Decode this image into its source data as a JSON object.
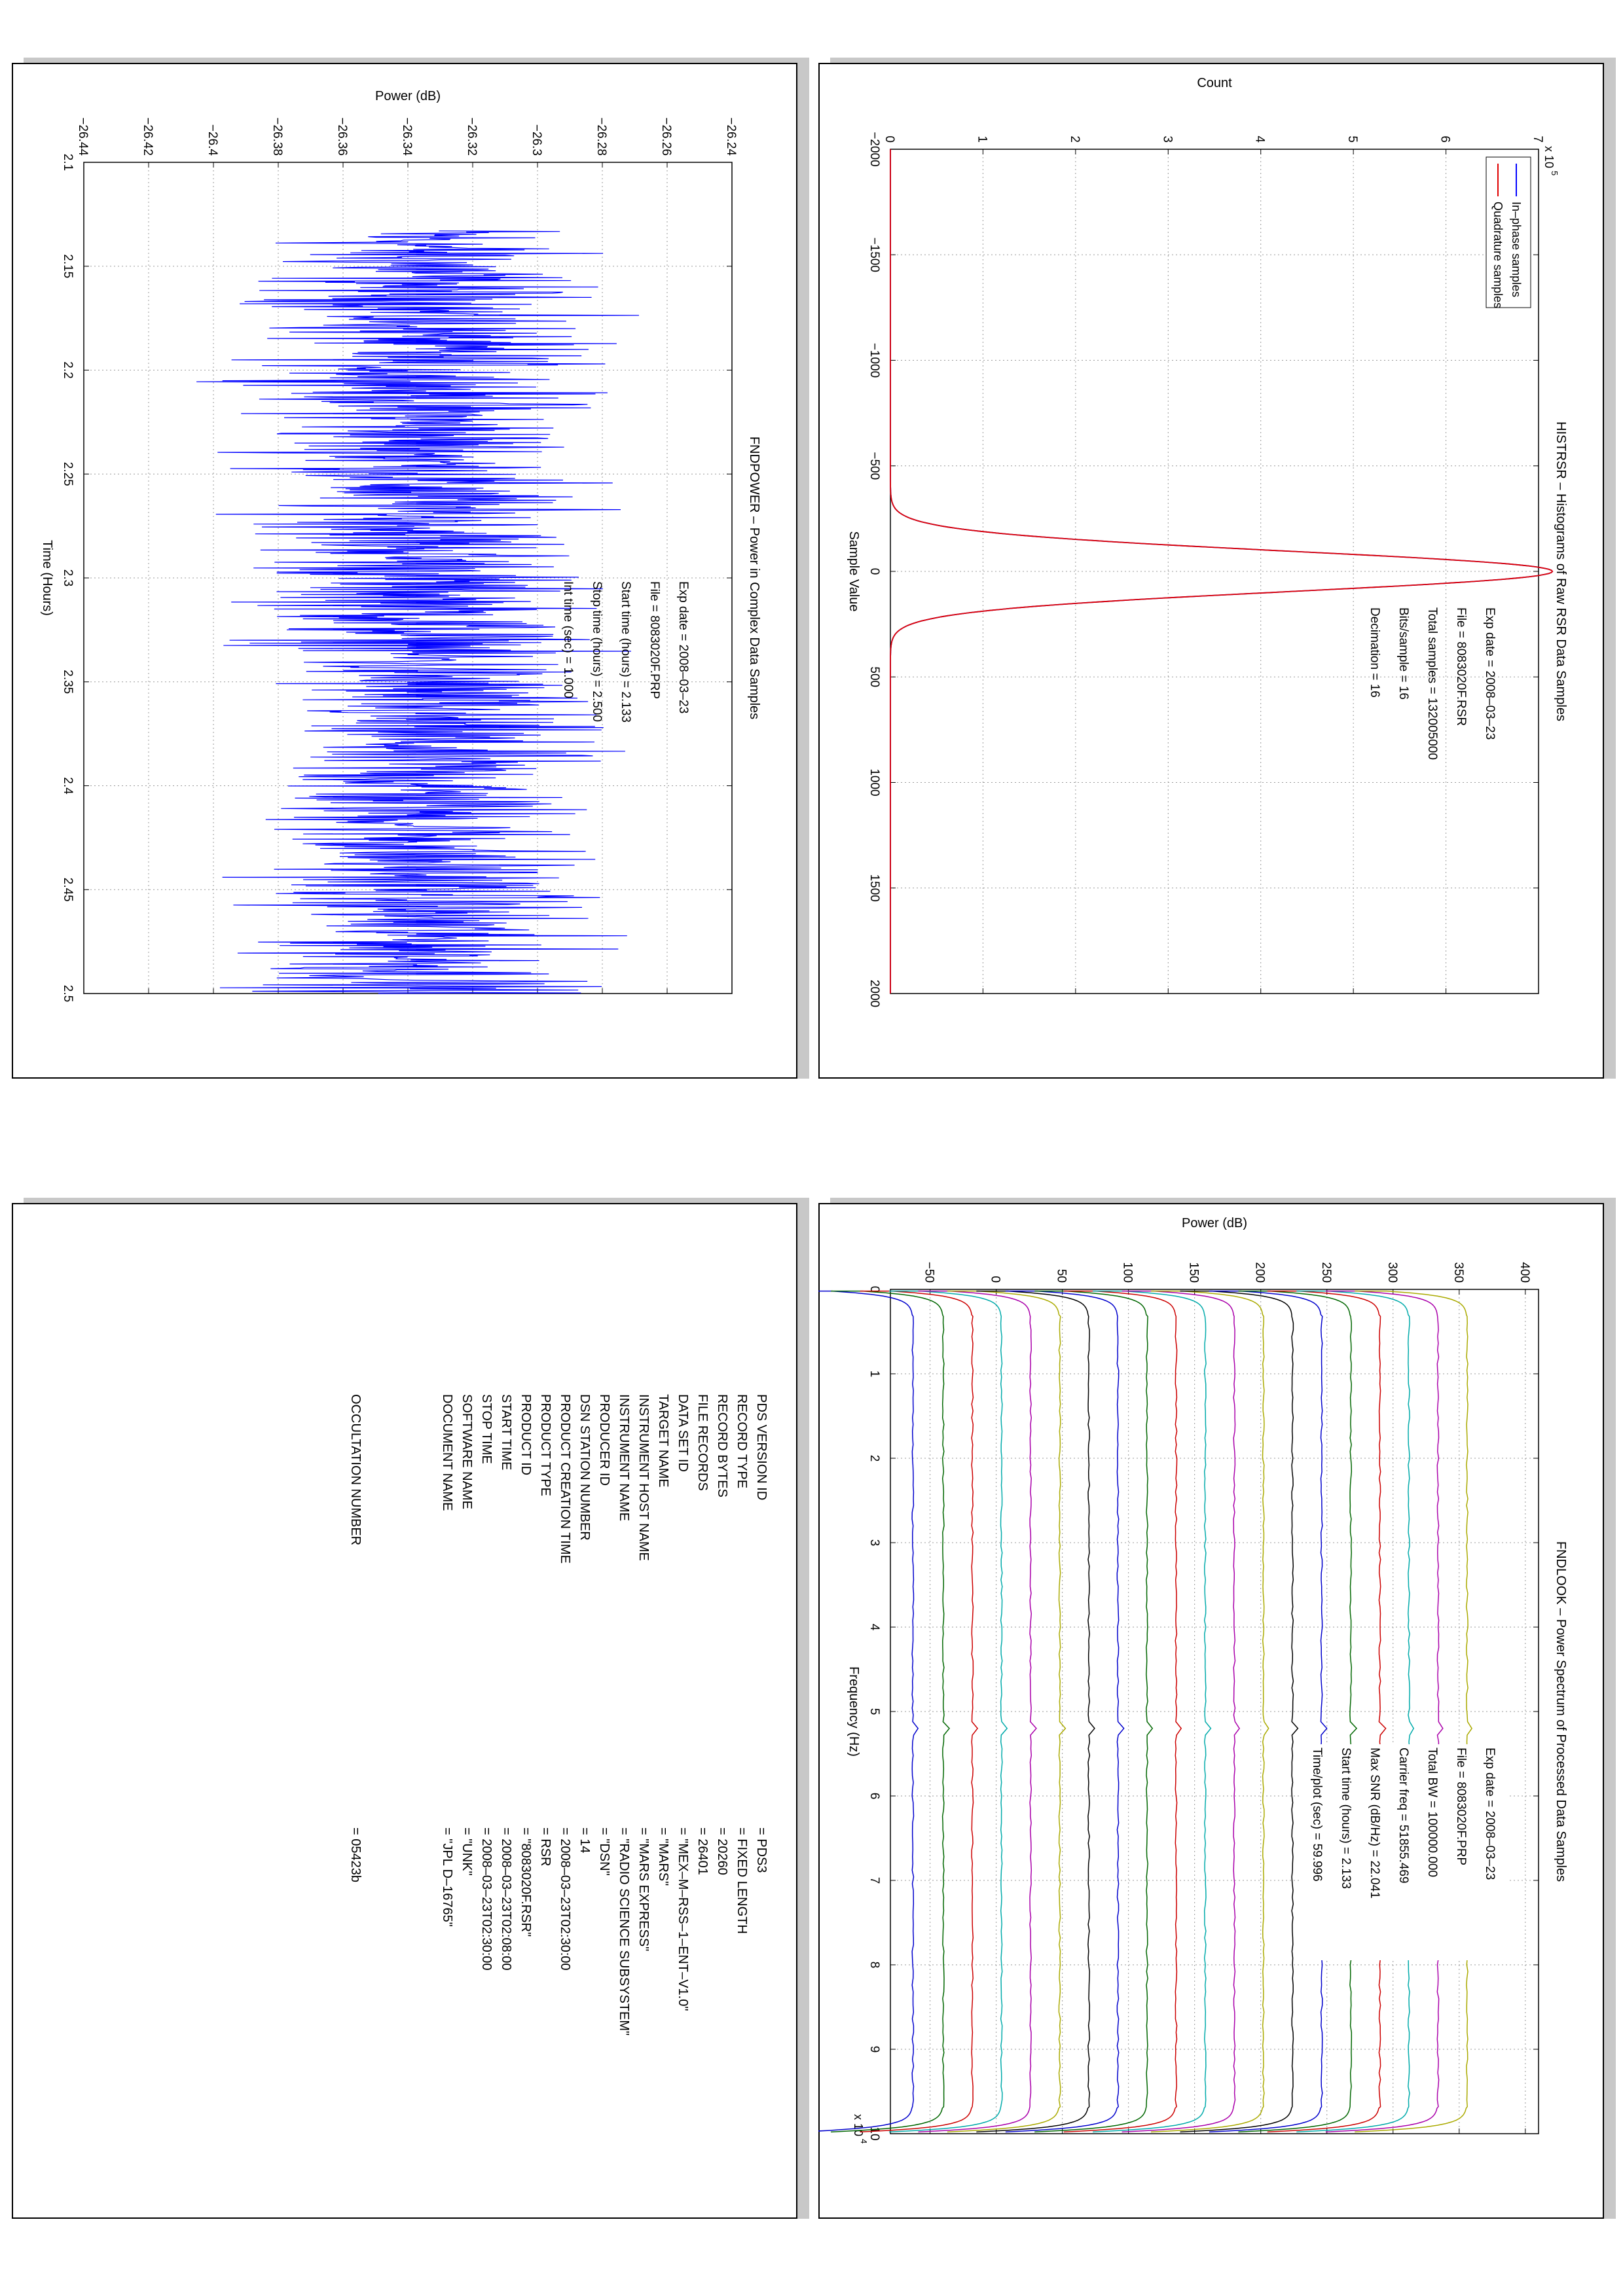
{
  "panels": {
    "histogram": {
      "title": "HISTRSR – Histograms of Raw RSR Data Samples",
      "info": [
        "Exp date = 2008–03–23",
        "File = 8083020F.RSR",
        "Total samples =  132005000",
        "Bits/sample   =     16",
        "Decimation    =     16"
      ],
      "legend": [
        "In–phase samples",
        "Quadrature samples"
      ],
      "colors": [
        "#0000ff",
        "#e00000"
      ]
    },
    "power": {
      "title": "FNDPOWER – Power in Complex Data Samples",
      "info": [
        "Exp date = 2008–03–23",
        "File = 8083020F.PRP",
        "Start time (hours) =  2.133",
        "Stop time (hours) =  2.500",
        "Int time (sec) =     1.000"
      ],
      "color": "#0000ff"
    },
    "spectrum": {
      "title": "FNDLOOK – Power Spectrum of Processed Data Samples",
      "info": [
        "Exp date = 2008–03–23",
        "File = 8083020F.PRP",
        "Total BW =    100000.000",
        "Carrier freq =  51855.469",
        "Max SNR (dB/Hz) =   22.041",
        "Start time (hours) =   2.133",
        "Time/plot (sec) =   59.996"
      ],
      "colors": [
        "#0000cc",
        "#006600",
        "#cc0000",
        "#00aaaa",
        "#aa00aa",
        "#aaaa00",
        "#000000"
      ]
    },
    "pds_label": {
      "rows": [
        {
          "key": "PDS VERSION ID",
          "value": "=  PDS3"
        },
        {
          "key": "RECORD TYPE",
          "value": "=  FIXED LENGTH"
        },
        {
          "key": "RECORD BYTES",
          "value": "=  20260"
        },
        {
          "key": "FILE RECORDS",
          "value": "=  26401"
        },
        {
          "key": "DATA SET ID",
          "value": "=  \"MEX–M–RSS–1–ENT–V1.0\""
        },
        {
          "key": "TARGET NAME",
          "value": "=  \"MARS\""
        },
        {
          "key": "INSTRUMENT HOST NAME",
          "value": "=  \"MARS EXPRESS\""
        },
        {
          "key": "INSTRUMENT NAME",
          "value": "=  \"RADIO SCIENCE SUBSYSTEM\""
        },
        {
          "key": "PRODUCER ID",
          "value": "=  \"DSN\""
        },
        {
          "key": "DSN STATION NUMBER",
          "value": "=  14"
        },
        {
          "key": "PRODUCT CREATION TIME",
          "value": "=  2008–03–23T02:30:00"
        },
        {
          "key": "PRODUCT TYPE",
          "value": "=  RSR"
        },
        {
          "key": "PRODUCT ID",
          "value": "=  \"8083020F.RSR\""
        },
        {
          "key": "START TIME",
          "value": "=  2008–03–23T02:08:00"
        },
        {
          "key": "STOP TIME",
          "value": "=  2008–03–23T02:30:00"
        },
        {
          "key": "SOFTWARE NAME",
          "value": "=  \"UNK\""
        },
        {
          "key": "DOCUMENT NAME",
          "value": "=  \"JPL D–16765\""
        }
      ],
      "occultation": {
        "key": "OCCULTATION NUMBER",
        "value": "=  05423b"
      }
    }
  },
  "chart_data": [
    {
      "type": "line",
      "title": "HISTRSR – Histograms of Raw RSR Data Samples",
      "xlabel": "Sample Value",
      "ylabel": "Count",
      "y_multiplier": "x 10^5",
      "xlim": [
        -2000,
        2000
      ],
      "ylim": [
        0,
        7
      ],
      "xticks": [
        -2000,
        -1500,
        -1000,
        -500,
        0,
        500,
        1000,
        1500,
        2000
      ],
      "yticks": [
        0,
        1,
        2,
        3,
        4,
        5,
        6,
        7
      ],
      "grid": true,
      "legend_position": "top-left",
      "series": [
        {
          "name": "In–phase samples",
          "shape": "gaussian",
          "peak": 7.15,
          "center": 0,
          "sigma": 95
        },
        {
          "name": "Quadrature samples",
          "shape": "gaussian",
          "peak": 7.15,
          "center": 0,
          "sigma": 95
        }
      ]
    },
    {
      "type": "line",
      "title": "FNDPOWER – Power in Complex Data Samples",
      "xlabel": "Time (Hours)",
      "ylabel": "Power (dB)",
      "xlim": [
        2.1,
        2.5
      ],
      "ylim": [
        -26.44,
        -26.24
      ],
      "xticks": [
        2.1,
        2.15,
        2.2,
        2.25,
        2.3,
        2.35,
        2.4,
        2.45,
        2.5
      ],
      "yticks": [
        -26.44,
        -26.42,
        -26.4,
        -26.38,
        -26.36,
        -26.34,
        -26.32,
        -26.3,
        -26.28,
        -26.26,
        -26.24
      ],
      "grid": true,
      "series": [
        {
          "name": "",
          "x_start": 2.133,
          "x_end": 2.5,
          "mean": -26.335,
          "spread": 0.038,
          "samples": 1320
        }
      ]
    },
    {
      "type": "line",
      "title": "FNDLOOK – Power Spectrum of Processed Data Samples",
      "xlabel": "Frequency (Hz)",
      "ylabel": "Power (dB)",
      "x_multiplier": "x 10^4",
      "xlim": [
        0,
        10
      ],
      "ylim": [
        -80,
        410
      ],
      "xticks": [
        0,
        1,
        2,
        3,
        4,
        5,
        6,
        7,
        8,
        9,
        10
      ],
      "yticks": [
        -50,
        0,
        50,
        100,
        150,
        200,
        250,
        300,
        350,
        400
      ],
      "grid": true,
      "series": [
        {
          "name": "",
          "level": -63
        },
        {
          "name": "",
          "level": -40
        },
        {
          "name": "",
          "level": -18
        },
        {
          "name": "",
          "level": 4
        },
        {
          "name": "",
          "level": 26
        },
        {
          "name": "",
          "level": 48
        },
        {
          "name": "",
          "level": 70
        },
        {
          "name": "",
          "level": 92
        },
        {
          "name": "",
          "level": 114
        },
        {
          "name": "",
          "level": 136
        },
        {
          "name": "",
          "level": 158
        },
        {
          "name": "",
          "level": 180
        },
        {
          "name": "",
          "level": 202
        },
        {
          "name": "",
          "level": 224
        },
        {
          "name": "",
          "level": 246
        },
        {
          "name": "",
          "level": 268
        },
        {
          "name": "",
          "level": 290
        },
        {
          "name": "",
          "level": 312
        },
        {
          "name": "",
          "level": 334
        },
        {
          "name": "",
          "level": 356
        }
      ]
    }
  ]
}
